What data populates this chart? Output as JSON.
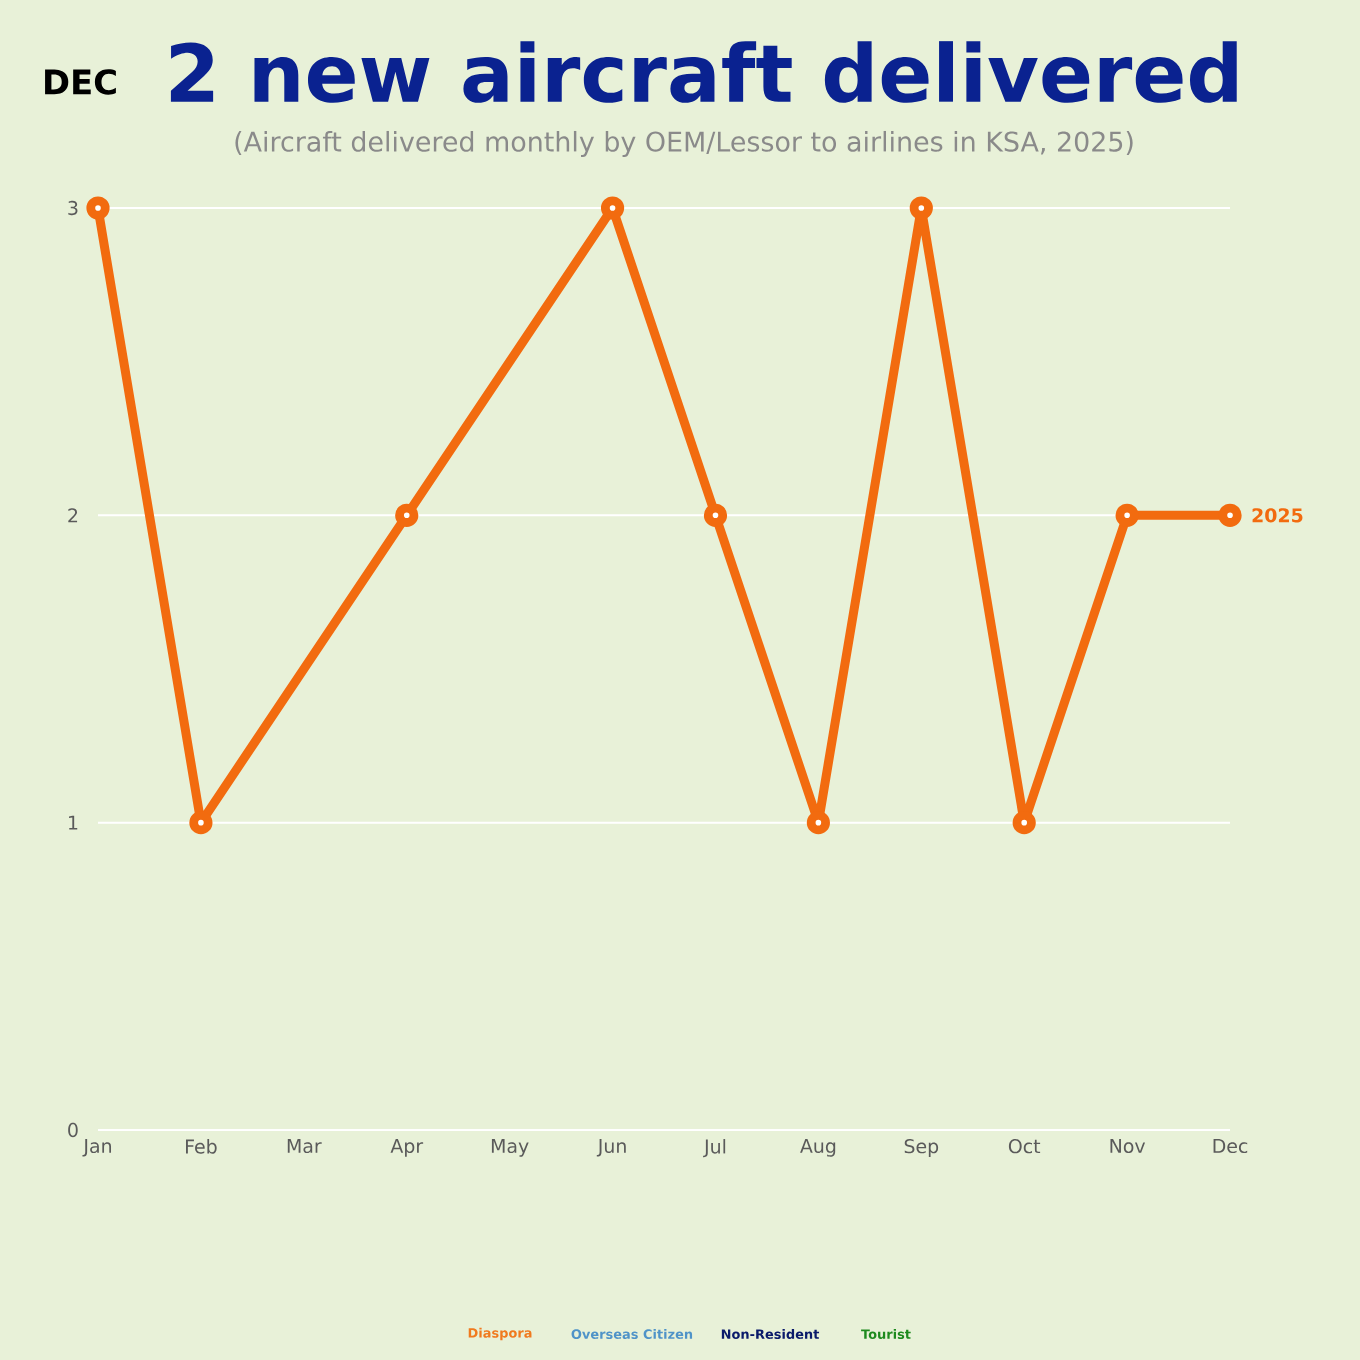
{
  "chart_data": {
    "type": "line",
    "title": "2 new aircraft delivered",
    "subtitle": "(Aircraft delivered monthly by OEM/Lessor to airlines in KSA, 2025)",
    "x": [
      "2025-01",
      "2025-02",
      "2025-04",
      "2025-06",
      "2025-07",
      "2025-08",
      "2025-09",
      "2025-10",
      "2025-11",
      "2025-12"
    ],
    "series": [
      {
        "name": "2025",
        "color": "#f26b0f",
        "values": [
          3,
          1,
          2,
          3,
          2,
          1,
          3,
          1,
          2,
          2
        ]
      }
    ],
    "xlim": [
      "2025-01",
      "2025-12"
    ],
    "xticks": [
      {
        "value": "2025-01",
        "label": "Jan"
      },
      {
        "value": "2025-02",
        "label": "Feb"
      },
      {
        "value": "2025-03",
        "label": "Mar"
      },
      {
        "value": "2025-04",
        "label": "Apr"
      },
      {
        "value": "2025-05",
        "label": "May"
      },
      {
        "value": "2025-06",
        "label": "Jun"
      },
      {
        "value": "2025-07",
        "label": "Jul"
      },
      {
        "value": "2025-08",
        "label": "Aug"
      },
      {
        "value": "2025-09",
        "label": "Sep"
      },
      {
        "value": "2025-10",
        "label": "Oct"
      },
      {
        "value": "2025-11",
        "label": "Nov"
      },
      {
        "value": "2025-12",
        "label": "Dec"
      }
    ],
    "ylim": [
      0,
      3
    ],
    "yticks": [
      0,
      1,
      2,
      3
    ],
    "grid": "y",
    "marker": "circle",
    "line_style": "solid",
    "annotations": [
      "DEC",
      "Diaspora",
      "Overseas Citizen",
      "Non-Resident",
      "Tourist"
    ]
  }
}
